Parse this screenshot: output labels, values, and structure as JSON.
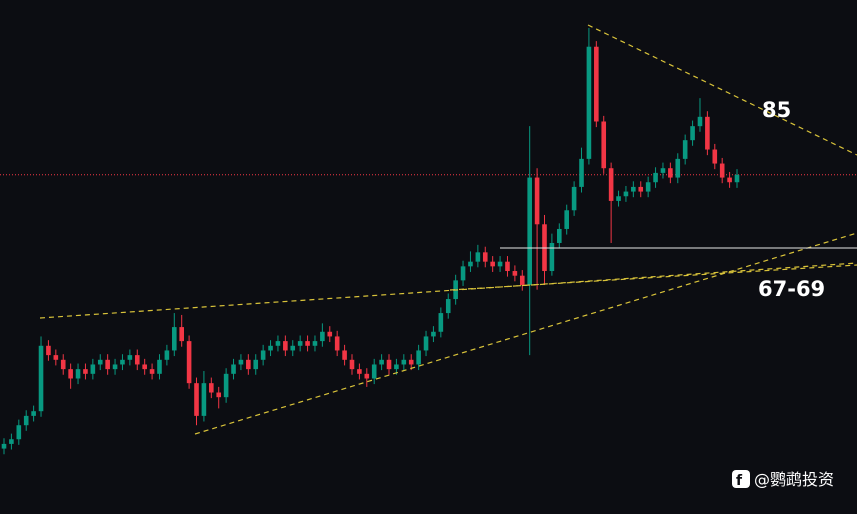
{
  "chart_data": {
    "type": "candlestick",
    "ylim": [
      42,
      97
    ],
    "up_color": "#089981",
    "down_color": "#f23645",
    "last_price_color": "#f23645",
    "open": [
      49,
      49.5,
      50,
      51.5,
      52.5,
      53,
      60,
      59,
      58.5,
      57.5,
      56.5,
      57.5,
      57,
      58,
      58.5,
      57.5,
      58,
      58.5,
      59,
      58,
      57.5,
      57,
      58.5,
      59.5,
      62,
      60.5,
      56,
      52.5,
      56,
      55,
      54.5,
      57,
      58,
      58.5,
      57.5,
      58.5,
      59.5,
      60,
      60.5,
      59.5,
      60,
      60.5,
      60,
      60.5,
      61.5,
      61,
      59.5,
      58.5,
      57.5,
      57,
      56.5,
      58,
      58.5,
      57.5,
      58,
      58.5,
      58,
      59.5,
      61,
      61.5,
      63.5,
      65,
      67,
      68.5,
      69,
      70,
      69,
      68.5,
      69,
      68,
      67.5,
      66.5,
      78,
      73,
      68,
      71,
      72.5,
      74.5,
      77,
      80,
      92,
      84,
      79,
      75.5,
      76,
      76.5,
      77,
      76.5,
      77.5,
      78.5,
      79,
      78,
      80,
      82,
      83.5,
      84.5,
      81,
      79.5,
      78,
      77.5
    ],
    "high": [
      50.1,
      50.6,
      52.1,
      53.1,
      53.6,
      61,
      60.6,
      59.6,
      59.1,
      58.1,
      58.1,
      58.1,
      58.6,
      59.1,
      59.1,
      58.6,
      59.1,
      59.6,
      59.6,
      58.6,
      58.1,
      59.1,
      60.1,
      63.5,
      63.3,
      61.1,
      56.6,
      57.3,
      56.6,
      55.6,
      57.6,
      58.6,
      59.1,
      59.1,
      59.1,
      60.1,
      60.6,
      61.1,
      61.1,
      60.6,
      61.1,
      61.1,
      61.1,
      62.4,
      62.1,
      61.6,
      60.1,
      59.1,
      58.1,
      57.6,
      58.6,
      59.1,
      59.1,
      58.6,
      59.1,
      59.1,
      60.1,
      61.6,
      62.1,
      64.1,
      65.6,
      67.6,
      69.1,
      70.1,
      70.8,
      70.6,
      69.6,
      69.6,
      69.6,
      68.6,
      68.1,
      83.5,
      79,
      74,
      72,
      73.1,
      75.1,
      77.6,
      81.2,
      94,
      92.6,
      84.6,
      79.6,
      76.6,
      77.1,
      77.6,
      77.6,
      78.1,
      79.1,
      79.6,
      79.6,
      80.6,
      82.6,
      84.1,
      86.5,
      85.1,
      81.6,
      80.1,
      78.6,
      78.9
    ],
    "low": [
      48.4,
      48.9,
      49.4,
      50.9,
      51.9,
      52.4,
      58.4,
      57.9,
      56.9,
      55.4,
      55.9,
      56.4,
      56.4,
      57.4,
      56.9,
      56.9,
      57.4,
      57.9,
      57.4,
      56.9,
      56.4,
      56.4,
      57.9,
      58.9,
      59.9,
      55.4,
      51.5,
      51.9,
      54.4,
      53.3,
      53.9,
      56.4,
      57.4,
      56.9,
      56.9,
      57.9,
      58.9,
      59.4,
      58.9,
      58.9,
      59.4,
      59.4,
      59.4,
      59.9,
      60.4,
      58.9,
      57.9,
      56.9,
      56.4,
      55.6,
      55.9,
      57.4,
      56.9,
      56.9,
      57.4,
      57.4,
      57.4,
      58.9,
      60.4,
      60.9,
      62.9,
      64.4,
      66.4,
      67.9,
      68.4,
      68.4,
      67.9,
      67.9,
      67.4,
      66.9,
      65.9,
      59,
      66,
      66.5,
      67.5,
      70.4,
      71.9,
      73.9,
      76.4,
      79.4,
      83.4,
      78.4,
      71,
      74.9,
      75.4,
      75.9,
      75.9,
      75.9,
      76.9,
      77.9,
      77.4,
      77.4,
      79.4,
      81.4,
      82.9,
      80.4,
      78.9,
      77.4,
      76.9,
      76.9
    ],
    "close": [
      49.5,
      50,
      51.5,
      52.5,
      53,
      60,
      59,
      58.5,
      57.5,
      56.5,
      57.5,
      57,
      58,
      58.5,
      57.5,
      58,
      58.5,
      59,
      58,
      57.5,
      57,
      58.5,
      59.5,
      62,
      60.5,
      56,
      52.5,
      56,
      55,
      54.5,
      57,
      58,
      58.5,
      57.5,
      58.5,
      59.5,
      60,
      60.5,
      59.5,
      60,
      60.5,
      60,
      60.5,
      61.5,
      61,
      59.5,
      58.5,
      57.5,
      57,
      56.5,
      58,
      58.5,
      57.5,
      58,
      58.5,
      58,
      59.5,
      61,
      61.5,
      63.5,
      65,
      67,
      68.5,
      69,
      70,
      69,
      68.5,
      69,
      68,
      67.5,
      66.5,
      78,
      73,
      68,
      71,
      72.5,
      74.5,
      77,
      80,
      92,
      84,
      79,
      75.5,
      76,
      76.5,
      77,
      76.5,
      77.5,
      78.5,
      79,
      78,
      80,
      82,
      83.5,
      84.5,
      81,
      79.5,
      78,
      77.5,
      78.3
    ],
    "annotations": [
      "85",
      "67-69"
    ]
  },
  "watermark": "@鹦鹉投资"
}
